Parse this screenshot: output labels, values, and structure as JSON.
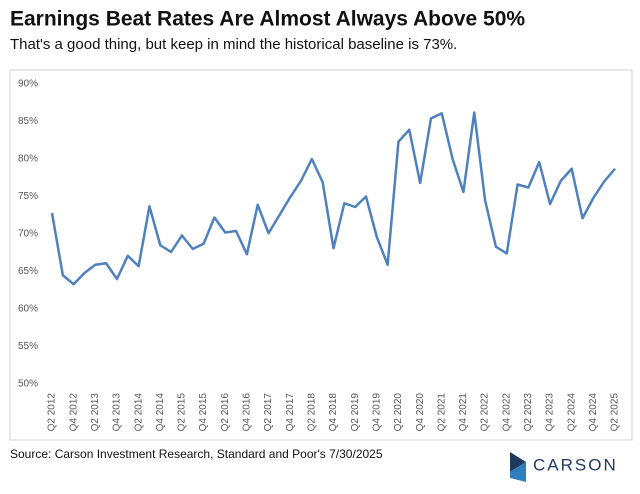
{
  "chart_data": {
    "type": "line",
    "title": "Earnings Beat Rates Are Almost Always Above 50%",
    "subtitle": "That's a good thing, but keep in mind the historical baseline is 73%.",
    "source": "Source: Carson Investment Research, Standard and Poor's 7/30/2025",
    "brand": "CARSON",
    "categories": [
      "Q2 2012",
      null,
      "Q4 2012",
      null,
      "Q2 2013",
      null,
      "Q4 2013",
      null,
      "Q2 2014",
      null,
      "Q4 2014",
      null,
      "Q2 2015",
      null,
      "Q4 2015",
      null,
      "Q2 2016",
      null,
      "Q4 2016",
      null,
      "Q2 2017",
      null,
      "Q4 2017",
      null,
      "Q2 2018",
      null,
      "Q4 2018",
      null,
      "Q2 2019",
      null,
      "Q4 2019",
      null,
      "Q2 2020",
      null,
      "Q4 2020",
      null,
      "Q2 2021",
      null,
      "Q4 2021",
      null,
      "Q2 2022",
      null,
      "Q4 2022",
      null,
      "Q2 2023",
      null,
      "Q4 2023",
      null,
      "Q2 2024",
      null,
      "Q4 2024",
      null,
      "Q2 2025"
    ],
    "series": [
      {
        "name": "Earnings Beat Rate",
        "color": "#4f81bd",
        "values": [
          72.8,
          64.5,
          63.3,
          64.8,
          65.9,
          66.1,
          64.0,
          67.1,
          65.7,
          73.7,
          68.5,
          67.6,
          69.8,
          68.0,
          68.7,
          72.2,
          70.2,
          70.4,
          67.3,
          73.9,
          70.1,
          72.5,
          74.9,
          77.1,
          80.0,
          76.9,
          68.1,
          74.1,
          73.6,
          75.0,
          69.6,
          65.9,
          82.3,
          83.9,
          76.8,
          85.4,
          86.1,
          80.0,
          75.6,
          86.2,
          74.5,
          68.3,
          67.4,
          76.6,
          76.2,
          79.6,
          74.0,
          77.1,
          78.7,
          72.1,
          74.8,
          77.0,
          78.7
        ]
      }
    ],
    "ylim": [
      50,
      90
    ],
    "yticks": [
      {
        "value": 50,
        "label": "50%"
      },
      {
        "value": 55,
        "label": "55%"
      },
      {
        "value": 60,
        "label": "60%"
      },
      {
        "value": 65,
        "label": "65%"
      },
      {
        "value": 70,
        "label": "70%"
      },
      {
        "value": 75,
        "label": "75%"
      },
      {
        "value": 80,
        "label": "80%"
      },
      {
        "value": 85,
        "label": "85%"
      },
      {
        "value": 90,
        "label": "90%"
      }
    ],
    "grid": false
  }
}
